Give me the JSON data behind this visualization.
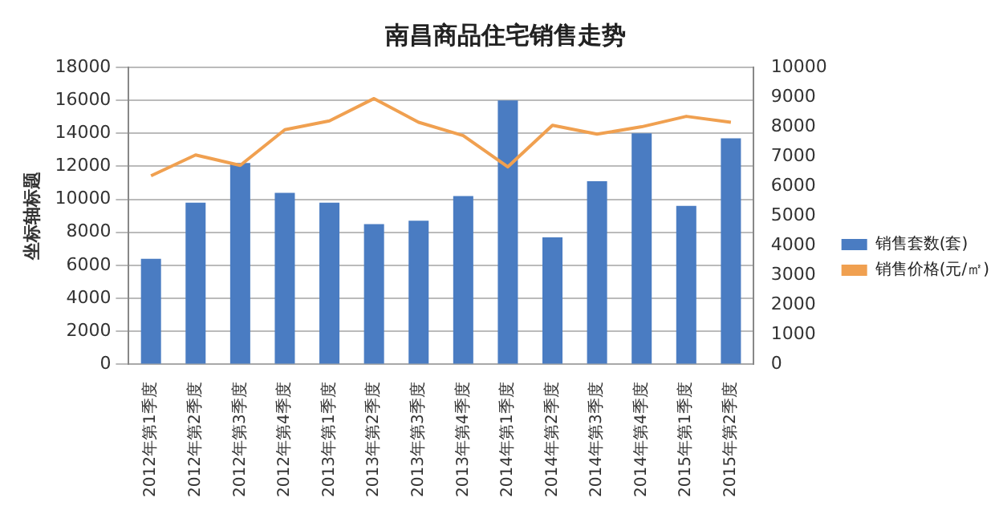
{
  "chart_data": {
    "type": "bar",
    "title": "南昌商品住宅销售走势",
    "ylabel": "坐标轴标题",
    "categories": [
      "2012年第1季度",
      "2012年第2季度",
      "2012年第3季度",
      "2012年第4季度",
      "2013年第1季度",
      "2013年第2季度",
      "2013年第3季度",
      "2013年第4季度",
      "2014年第1季度",
      "2014年第2季度",
      "2014年第3季度",
      "2014年第4季度",
      "2015年第1季度",
      "2015年第2季度"
    ],
    "series": [
      {
        "name": "销售套数(套)",
        "color": "#4a7cc2",
        "values": [
          6400,
          9800,
          12200,
          10400,
          9800,
          8500,
          8700,
          10200,
          16000,
          7700,
          11100,
          14000,
          9600,
          13700
        ]
      },
      {
        "name": "销售价格(元/㎡)",
        "type": "line",
        "axis": "y2",
        "color": "#f0a050",
        "values": [
          6350,
          7050,
          6700,
          7900,
          8200,
          8950,
          8150,
          7700,
          6650,
          8050,
          7750,
          8000,
          8350,
          8150
        ]
      }
    ],
    "ylim": [
      0,
      18000
    ],
    "yticks": [
      0,
      2000,
      4000,
      6000,
      8000,
      10000,
      12000,
      14000,
      16000,
      18000
    ],
    "y2lim": [
      0,
      10000
    ],
    "y2ticks": [
      0,
      1000,
      2000,
      3000,
      4000,
      5000,
      6000,
      7000,
      8000,
      9000,
      10000
    ],
    "grid": "y",
    "legend": "right",
    "marker": "none"
  }
}
